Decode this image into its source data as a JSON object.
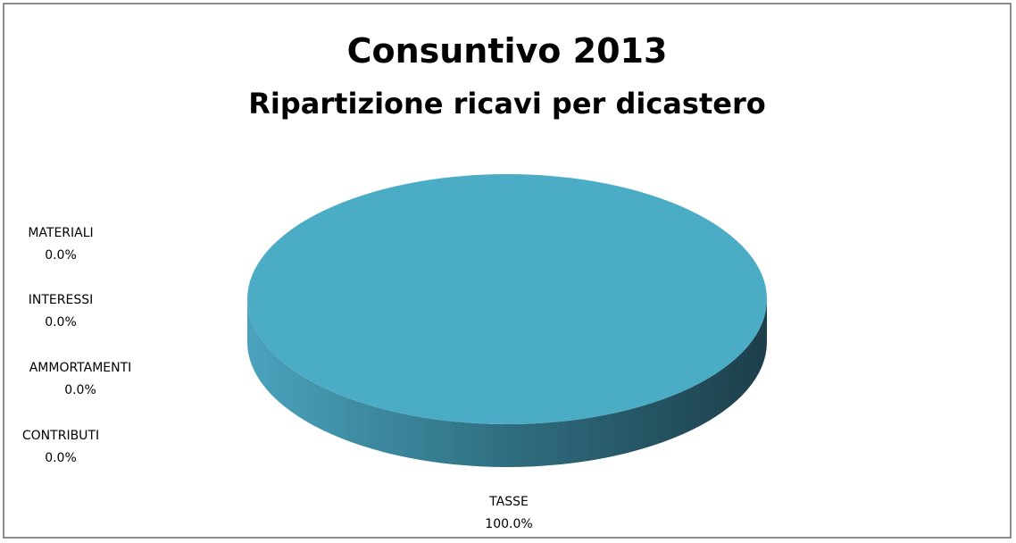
{
  "chart_data": {
    "type": "pie",
    "style": "3d",
    "title": "Consuntivo 2013",
    "subtitle": "Ripartizione ricavi per dicastero",
    "slices": [
      {
        "label": "MATERIALI",
        "value": 0.0,
        "display": "0.0%"
      },
      {
        "label": "INTERESSI",
        "value": 0.0,
        "display": "0.0%"
      },
      {
        "label": "AMMORTAMENTI",
        "value": 0.0,
        "display": "0.0%"
      },
      {
        "label": "CONTRIBUTI",
        "value": 0.0,
        "display": "0.0%"
      },
      {
        "label": "TASSE",
        "value": 100.0,
        "display": "100.0%"
      }
    ],
    "colors": {
      "top": "#4bacc6",
      "side_light": "#4aa3bd",
      "side_dark": "#1d3f4b"
    },
    "legend": "none"
  }
}
